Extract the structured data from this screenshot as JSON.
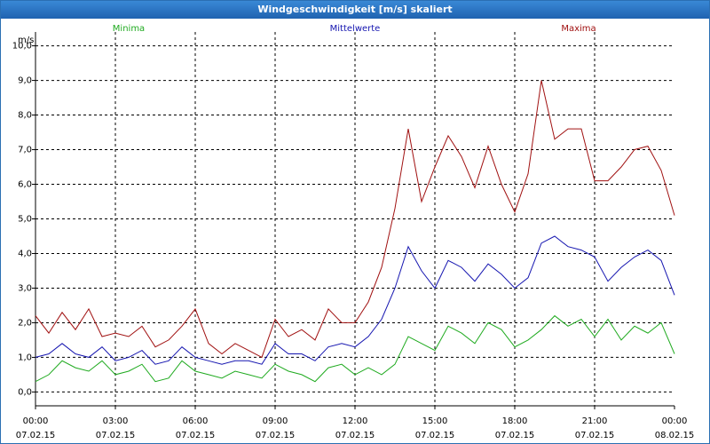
{
  "window": {
    "title": "Windgeschwindigkeit [m/s] skaliert"
  },
  "chart_data": {
    "type": "line",
    "title": "Windgeschwindigkeit [m/s] skaliert",
    "ylabel": "m/s",
    "xlabel": "",
    "ylim": [
      -0.4,
      10.4
    ],
    "y_ticks": [
      "0,0",
      "1,0",
      "2,0",
      "3,0",
      "4,0",
      "5,0",
      "6,0",
      "7,0",
      "8,0",
      "9,0",
      "10,0"
    ],
    "y_tick_values": [
      0,
      1,
      2,
      3,
      4,
      5,
      6,
      7,
      8,
      9,
      10
    ],
    "xlim": [
      0,
      24
    ],
    "x_ticks": [
      {
        "h": 0,
        "time": "00:00",
        "date": "07.02.15"
      },
      {
        "h": 3,
        "time": "03:00",
        "date": "07.02.15"
      },
      {
        "h": 6,
        "time": "06:00",
        "date": "07.02.15"
      },
      {
        "h": 9,
        "time": "09:00",
        "date": "07.02.15"
      },
      {
        "h": 12,
        "time": "12:00",
        "date": "07.02.15"
      },
      {
        "h": 15,
        "time": "15:00",
        "date": "07.02.15"
      },
      {
        "h": 18,
        "time": "18:00",
        "date": "07.02.15"
      },
      {
        "h": 21,
        "time": "21:00",
        "date": "07.02.15"
      },
      {
        "h": 24,
        "time": "00:00",
        "date": "08.02.15"
      }
    ],
    "x": [
      0,
      0.5,
      1,
      1.5,
      2,
      2.5,
      3,
      3.5,
      4,
      4.5,
      5,
      5.5,
      6,
      6.5,
      7,
      7.5,
      8,
      8.5,
      9,
      9.5,
      10,
      10.5,
      11,
      11.5,
      12,
      12.5,
      13,
      13.5,
      14,
      14.5,
      15,
      15.5,
      16,
      16.5,
      17,
      17.5,
      18,
      18.5,
      19,
      19.5,
      20,
      20.5,
      21,
      21.5,
      22,
      22.5,
      23,
      23.5,
      24
    ],
    "series": [
      {
        "name": "Minima",
        "color": "#1faa1f",
        "values": [
          0.3,
          0.5,
          0.9,
          0.7,
          0.6,
          0.9,
          0.5,
          0.6,
          0.8,
          0.3,
          0.4,
          0.9,
          0.6,
          0.5,
          0.4,
          0.6,
          0.5,
          0.4,
          0.8,
          0.6,
          0.5,
          0.3,
          0.7,
          0.8,
          0.5,
          0.7,
          0.5,
          0.8,
          1.6,
          1.4,
          1.2,
          1.9,
          1.7,
          1.4,
          2.0,
          1.8,
          1.3,
          1.5,
          1.8,
          2.2,
          1.9,
          2.1,
          1.6,
          2.1,
          1.5,
          1.9,
          1.7,
          2.0,
          1.1
        ]
      },
      {
        "name": "Mittelwerte",
        "color": "#1515b0",
        "values": [
          1.0,
          1.1,
          1.4,
          1.1,
          1.0,
          1.3,
          0.9,
          1.0,
          1.2,
          0.8,
          0.9,
          1.3,
          1.0,
          0.9,
          0.8,
          0.9,
          0.9,
          0.8,
          1.4,
          1.1,
          1.1,
          0.9,
          1.3,
          1.4,
          1.3,
          1.6,
          2.1,
          3.0,
          4.2,
          3.5,
          3.0,
          3.8,
          3.6,
          3.2,
          3.7,
          3.4,
          3.0,
          3.3,
          4.3,
          4.5,
          4.2,
          4.1,
          3.9,
          3.2,
          3.6,
          3.9,
          4.1,
          3.8,
          2.8
        ]
      },
      {
        "name": "Maxima",
        "color": "#a01010",
        "values": [
          2.2,
          1.7,
          2.3,
          1.8,
          2.4,
          1.6,
          1.7,
          1.6,
          1.9,
          1.3,
          1.5,
          1.9,
          2.4,
          1.4,
          1.1,
          1.4,
          1.2,
          1.0,
          2.1,
          1.6,
          1.8,
          1.5,
          2.4,
          2.0,
          2.0,
          2.6,
          3.6,
          5.3,
          7.6,
          5.5,
          6.5,
          7.4,
          6.8,
          5.9,
          7.1,
          6.0,
          5.2,
          6.3,
          9.0,
          7.3,
          7.6,
          7.6,
          6.1,
          6.1,
          6.5,
          7.0,
          7.1,
          6.4,
          5.1
        ]
      }
    ]
  }
}
